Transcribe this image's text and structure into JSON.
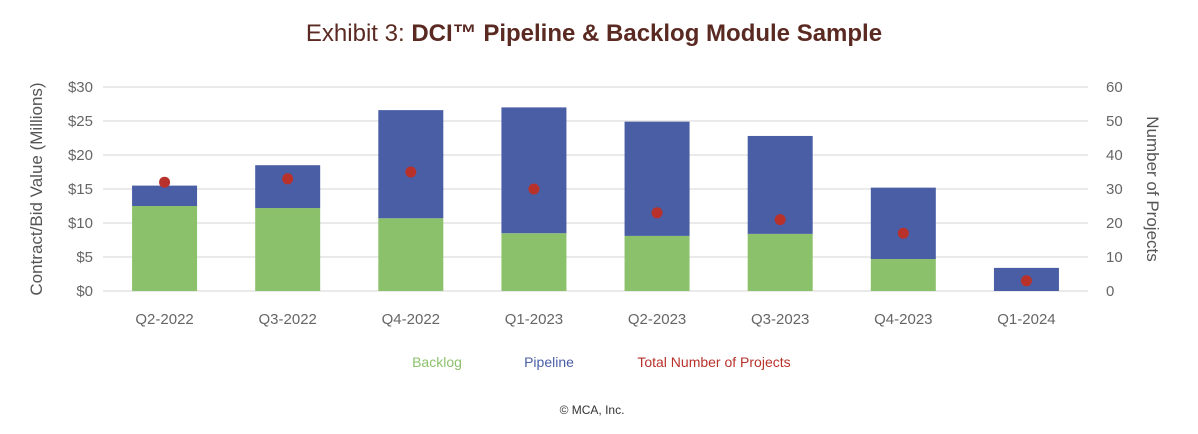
{
  "title": {
    "prefix": "Exhibit 3: ",
    "main": "DCI™ Pipeline & Backlog Module Sample"
  },
  "copyright": "© MCA, Inc.",
  "colors": {
    "backlog": "#8cc16c",
    "pipeline": "#4a5ea5",
    "total_projects": "#b8322b",
    "title": "#5a2a22"
  },
  "chart_data": {
    "type": "bar",
    "stacked": true,
    "categories": [
      "Q2-2022",
      "Q3-2022",
      "Q4-2022",
      "Q1-2023",
      "Q2-2023",
      "Q3-2023",
      "Q4-2023",
      "Q1-2024"
    ],
    "series": [
      {
        "name": "Backlog",
        "type": "bar",
        "axis": "left",
        "values": [
          12.5,
          12.2,
          10.7,
          8.5,
          8.1,
          8.4,
          4.7,
          0
        ]
      },
      {
        "name": "Pipeline",
        "type": "bar",
        "axis": "left",
        "values": [
          3.0,
          6.3,
          15.9,
          18.5,
          16.8,
          14.4,
          10.5,
          3.4
        ]
      },
      {
        "name": "Total Number of Projects",
        "type": "scatter",
        "axis": "right",
        "values": [
          32,
          33,
          35,
          30,
          23,
          21,
          17,
          3
        ]
      }
    ],
    "ylabel": "Contract/Bid Value (Millions)",
    "y2label": "Number of Projects",
    "ylim": [
      0,
      30
    ],
    "y2lim": [
      0,
      60
    ],
    "yticks": [
      "$0",
      "$5",
      "$10",
      "$15",
      "$20",
      "$25",
      "$30"
    ],
    "y2ticks": [
      "0",
      "10",
      "20",
      "30",
      "40",
      "50",
      "60"
    ],
    "grid": true,
    "legend_position": "bottom"
  }
}
